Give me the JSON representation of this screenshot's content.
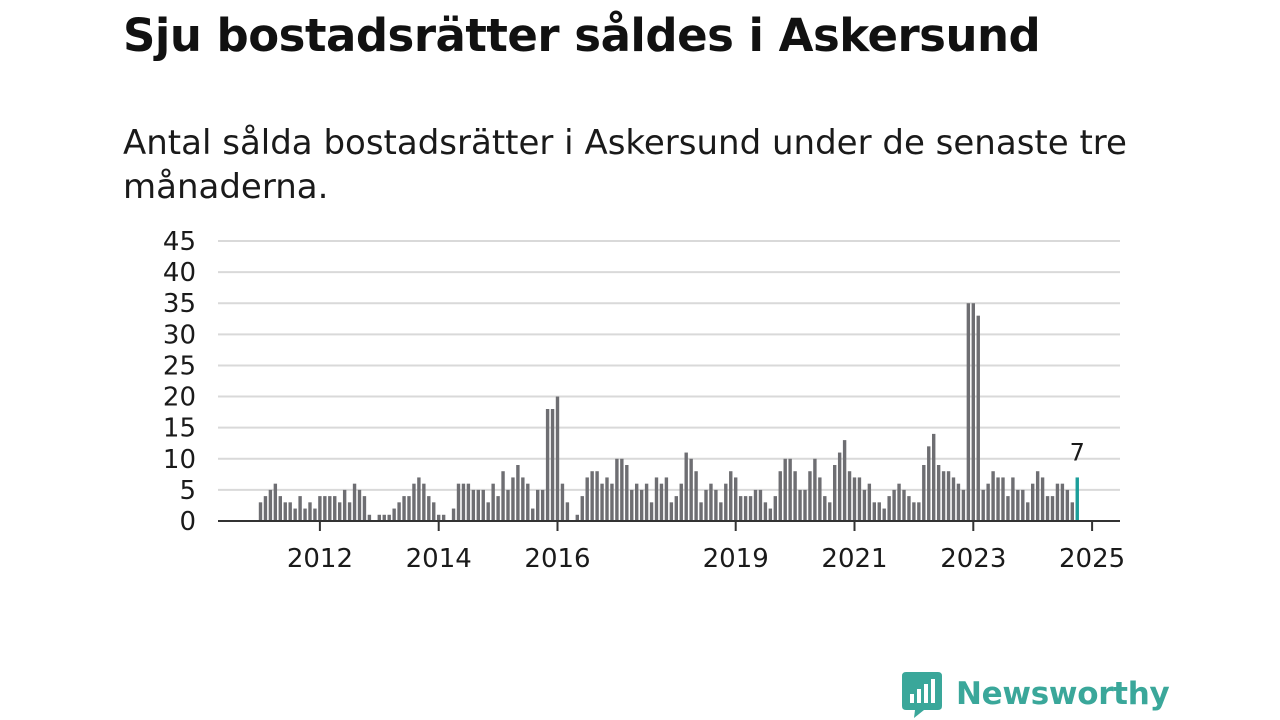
{
  "title": "Sju bostadsrätter såldes i Askersund",
  "subtitle": "Antal sålda bostadsrätter i Askersund under de senaste tre månaderna.",
  "brand": {
    "name": "Newsworthy",
    "icon": "newsworthy-logo-icon",
    "color": "#3aa79a"
  },
  "chart_data": {
    "type": "bar",
    "title": "Antal sålda bostadsrätter i Askersund",
    "xlabel": "",
    "ylabel": "",
    "ylim": [
      0,
      45
    ],
    "yticks": [
      0,
      5,
      10,
      15,
      20,
      25,
      30,
      35,
      40,
      45
    ],
    "grid": true,
    "bar_color": "#6e6e72",
    "highlight_color": "#1b9e9a",
    "start": "2011-01",
    "xticks": [
      {
        "label": "2012",
        "index": 12
      },
      {
        "label": "2014",
        "index": 36
      },
      {
        "label": "2016",
        "index": 60
      },
      {
        "label": "2019",
        "index": 96
      },
      {
        "label": "2021",
        "index": 120
      },
      {
        "label": "2023",
        "index": 144
      },
      {
        "label": "2025",
        "index": 168
      }
    ],
    "values": [
      3,
      4,
      5,
      6,
      4,
      3,
      3,
      2,
      4,
      2,
      3,
      2,
      4,
      4,
      4,
      4,
      3,
      5,
      3,
      6,
      5,
      4,
      1,
      0,
      1,
      1,
      1,
      2,
      3,
      4,
      4,
      6,
      7,
      6,
      4,
      3,
      1,
      1,
      0,
      2,
      6,
      6,
      6,
      5,
      5,
      5,
      3,
      6,
      4,
      8,
      5,
      7,
      9,
      7,
      6,
      2,
      5,
      5,
      18,
      18,
      20,
      6,
      3,
      0,
      1,
      4,
      7,
      8,
      8,
      6,
      7,
      6,
      10,
      10,
      9,
      5,
      6,
      5,
      6,
      3,
      7,
      6,
      7,
      3,
      4,
      6,
      11,
      10,
      8,
      3,
      5,
      6,
      5,
      3,
      6,
      8,
      7,
      4,
      4,
      4,
      5,
      5,
      3,
      2,
      4,
      8,
      10,
      10,
      8,
      5,
      5,
      8,
      10,
      7,
      4,
      3,
      9,
      11,
      13,
      8,
      7,
      7,
      5,
      6,
      3,
      3,
      2,
      4,
      5,
      6,
      5,
      4,
      3,
      3,
      9,
      12,
      14,
      9,
      8,
      8,
      7,
      6,
      5,
      35,
      35,
      33,
      5,
      6,
      8,
      7,
      7,
      4,
      7,
      5,
      5,
      3,
      6,
      8,
      7,
      4,
      4,
      6,
      6,
      5,
      3,
      7
    ],
    "highlight": {
      "label": "7",
      "value": 7
    }
  }
}
